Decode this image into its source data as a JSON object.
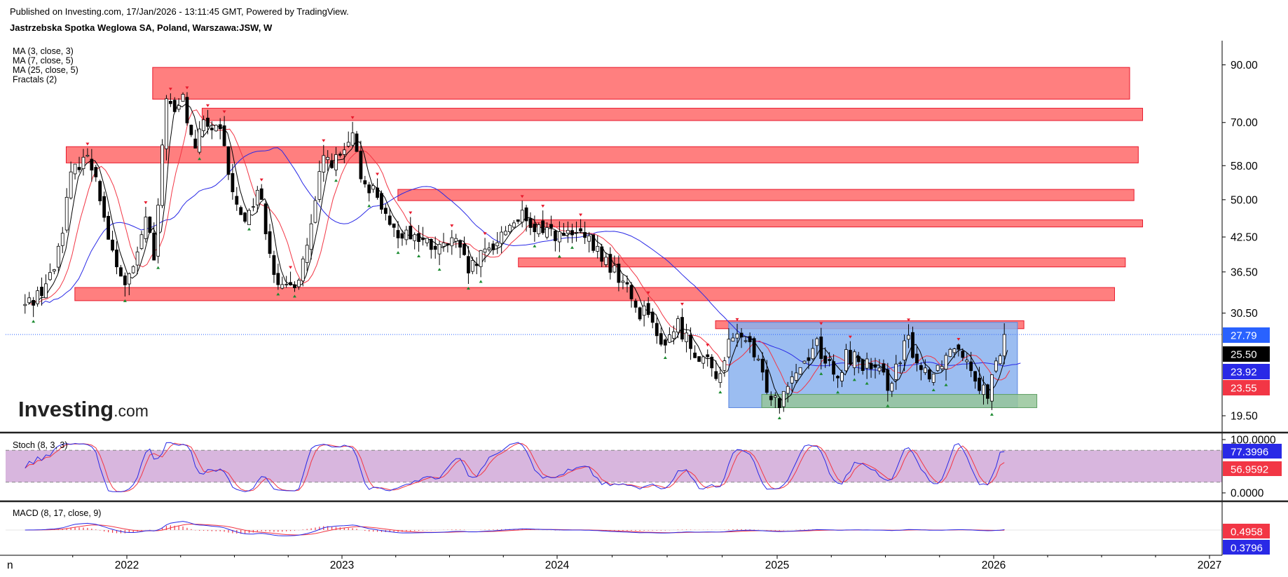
{
  "header": {
    "published": "Published on Investing.com, 17/Jan/2026 - 13:11:45 GMT, Powered by TradingView.",
    "symbol": "Jastrzebska Spotka Weglowa SA, Poland, Warszawa:JSW, W"
  },
  "logo": {
    "brand": "Investing",
    "suffix": ".com"
  },
  "colors": {
    "zone_fill": "#ff7f7f",
    "zone_border": "#e8192c",
    "range_fill": "#8ab2ef",
    "support_fill": "#97c59a",
    "ma_fast": "#000000",
    "ma_mid": "#f23645",
    "ma_slow": "#2929e6",
    "stoch_band": "#d8b6de",
    "fractal_up": "#e8192c",
    "fractal_down": "#1b8a30"
  },
  "chart_data": [
    {
      "type": "candlestick",
      "title": "Jastrzebska Spotka Weglowa SA, Poland, Warszawa:JSW, W",
      "scale": "log",
      "indicators": [
        "MA (3, close, 3)",
        "MA (7, close, 5)",
        "MA (25, close, 5)",
        "Fractals (2)"
      ],
      "x_range": [
        "2021-06",
        "2027-02"
      ],
      "x_ticks": [
        {
          "label": "n",
          "t": 2021.53
        },
        {
          "label": "2022",
          "t": 2022.0
        },
        {
          "label": "2023",
          "t": 2023.0
        },
        {
          "label": "2024",
          "t": 2024.0
        },
        {
          "label": "2025",
          "t": 2025.0
        },
        {
          "label": "2026",
          "t": 2026.0
        },
        {
          "label": "2027",
          "t": 2027.0
        }
      ],
      "y_ticks": [
        90.0,
        70.0,
        58.0,
        50.0,
        42.5,
        36.5,
        30.5,
        19.5
      ],
      "y_ticks_labels": [
        "90.00",
        "70.00",
        "58.00",
        "50.00",
        "42.50",
        "36.50",
        "30.50",
        "19.50"
      ],
      "price_labels": [
        {
          "label": "27.79",
          "color": "#2962ff"
        },
        {
          "label": "25.50",
          "color": "#000000"
        },
        {
          "label": "23.92",
          "color": "#2929e6"
        },
        {
          "label": "23.55",
          "color": "#f23645"
        }
      ],
      "resistance_zones": [
        {
          "t0": 2022.12,
          "t1": 2026.63,
          "lo": 77.5,
          "hi": 89.0
        },
        {
          "t0": 2022.35,
          "t1": 2026.69,
          "lo": 70.6,
          "hi": 74.5
        },
        {
          "t0": 2021.72,
          "t1": 2026.67,
          "lo": 58.7,
          "hi": 63.0
        },
        {
          "t0": 2023.26,
          "t1": 2026.65,
          "lo": 49.8,
          "hi": 52.3
        },
        {
          "t0": 2023.88,
          "t1": 2026.69,
          "lo": 44.4,
          "hi": 45.8
        },
        {
          "t0": 2023.82,
          "t1": 2026.61,
          "lo": 37.3,
          "hi": 38.8
        },
        {
          "t0": 2021.76,
          "t1": 2026.56,
          "lo": 32.2,
          "hi": 34.1
        },
        {
          "t0": 2024.72,
          "t1": 2026.14,
          "lo": 28.5,
          "hi": 29.5
        }
      ],
      "range_box": {
        "t0": 2024.78,
        "t1": 2026.11,
        "lo": 20.2,
        "hi": 29.3
      },
      "support_box": {
        "t0": 2024.93,
        "t1": 2026.2,
        "lo": 20.2,
        "hi": 21.4
      },
      "last_price": 27.79,
      "pivots": [
        [
          2021.53,
          31.5
        ],
        [
          2021.6,
          33.5
        ],
        [
          2021.66,
          36.5
        ],
        [
          2021.7,
          44.0
        ],
        [
          2021.74,
          55.0
        ],
        [
          2021.8,
          61.0
        ],
        [
          2021.86,
          56.0
        ],
        [
          2021.9,
          45.0
        ],
        [
          2021.95,
          37.0
        ],
        [
          2022.0,
          34.5
        ],
        [
          2022.05,
          39.0
        ],
        [
          2022.09,
          47.0
        ],
        [
          2022.13,
          37.5
        ],
        [
          2022.18,
          80.0
        ],
        [
          2022.22,
          72.0
        ],
        [
          2022.26,
          78.0
        ],
        [
          2022.31,
          62.0
        ],
        [
          2022.36,
          70.0
        ],
        [
          2022.44,
          66.0
        ],
        [
          2022.5,
          49.0
        ],
        [
          2022.56,
          46.0
        ],
        [
          2022.61,
          53.0
        ],
        [
          2022.68,
          37.5
        ],
        [
          2022.73,
          33.0
        ],
        [
          2022.8,
          36.0
        ],
        [
          2022.86,
          44.5
        ],
        [
          2022.91,
          60.0
        ],
        [
          2022.98,
          59.0
        ],
        [
          2023.05,
          65.0
        ],
        [
          2023.09,
          55.0
        ],
        [
          2023.17,
          51.0
        ],
        [
          2023.22,
          43.5
        ],
        [
          2023.31,
          43.5
        ],
        [
          2023.38,
          41.5
        ],
        [
          2023.45,
          40.0
        ],
        [
          2023.52,
          42.0
        ],
        [
          2023.59,
          36.5
        ],
        [
          2023.64,
          38.5
        ],
        [
          2023.7,
          41.0
        ],
        [
          2023.76,
          44.0
        ],
        [
          2023.83,
          47.0
        ],
        [
          2023.88,
          43.0
        ],
        [
          2023.94,
          44.5
        ],
        [
          2024.02,
          42.5
        ],
        [
          2024.1,
          43.0
        ],
        [
          2024.18,
          40.0
        ],
        [
          2024.25,
          37.0
        ],
        [
          2024.31,
          34.5
        ],
        [
          2024.37,
          30.5
        ],
        [
          2024.42,
          31.5
        ],
        [
          2024.46,
          26.0
        ],
        [
          2024.5,
          27.5
        ],
        [
          2024.55,
          29.0
        ],
        [
          2024.62,
          26.0
        ],
        [
          2024.67,
          25.0
        ],
        [
          2024.72,
          22.8
        ],
        [
          2024.78,
          26.5
        ],
        [
          2024.84,
          28.0
        ],
        [
          2024.9,
          25.0
        ],
        [
          2024.96,
          21.8
        ],
        [
          2025.01,
          20.8
        ],
        [
          2025.05,
          23.0
        ],
        [
          2025.12,
          24.5
        ],
        [
          2025.18,
          27.0
        ],
        [
          2025.23,
          24.5
        ],
        [
          2025.28,
          22.5
        ],
        [
          2025.32,
          25.5
        ],
        [
          2025.4,
          24.5
        ],
        [
          2025.46,
          23.5
        ],
        [
          2025.51,
          22.5
        ],
        [
          2025.57,
          24.5
        ],
        [
          2025.6,
          27.5
        ],
        [
          2025.66,
          24.0
        ],
        [
          2025.72,
          23.5
        ],
        [
          2025.78,
          25.5
        ],
        [
          2025.83,
          27.0
        ],
        [
          2025.88,
          25.0
        ],
        [
          2025.93,
          22.5
        ],
        [
          2025.97,
          21.5
        ],
        [
          2026.01,
          24.0
        ],
        [
          2026.05,
          27.79
        ]
      ],
      "ma_fast_shift": 0.015,
      "ma_mid_shift": 0.025,
      "ma_slow_shift": 0.075
    },
    {
      "type": "line",
      "title": "Stoch (8, 3, 3)",
      "y_ticks": [
        {
          "label": "100.0000",
          "v": 100
        },
        {
          "label": "0.0000",
          "v": 0
        }
      ],
      "band": [
        20,
        80
      ],
      "values_labels": [
        {
          "label": "77.3996",
          "color": "#2929e6"
        },
        {
          "label": "56.9592",
          "color": "#f23645"
        }
      ],
      "last": {
        "k": 77.3996,
        "d": 56.9592
      }
    },
    {
      "type": "line",
      "title": "MACD (8, 17, close, 9)",
      "values_labels": [
        {
          "label": "0.4958",
          "color": "#f23645"
        },
        {
          "label": "0.3796",
          "color": "#2929e6"
        }
      ],
      "last": {
        "macd": 0.3796,
        "signal": 0.4958
      }
    }
  ]
}
